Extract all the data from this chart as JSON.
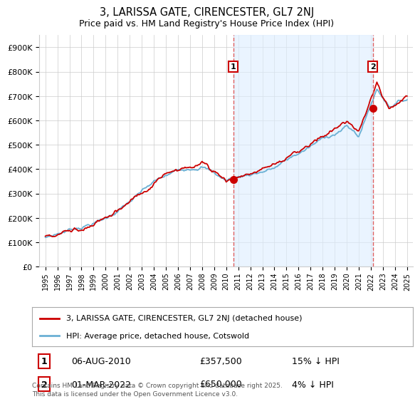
{
  "title": "3, LARISSA GATE, CIRENCESTER, GL7 2NJ",
  "subtitle": "Price paid vs. HM Land Registry's House Price Index (HPI)",
  "hpi_label": "HPI: Average price, detached house, Cotswold",
  "property_label": "3, LARISSA GATE, CIRENCESTER, GL7 2NJ (detached house)",
  "annotation1_date": "06-AUG-2010",
  "annotation1_price": "£357,500",
  "annotation1_hpi": "15% ↓ HPI",
  "annotation2_date": "01-MAR-2022",
  "annotation2_price": "£650,000",
  "annotation2_hpi": "4% ↓ HPI",
  "sale1_year": 2010.59,
  "sale1_value": 357500,
  "sale2_year": 2022.17,
  "sale2_value": 650000,
  "ylim_max": 950000,
  "ylim_min": 0,
  "xlim_min": 1994.5,
  "xlim_max": 2025.5,
  "hpi_color": "#6ab0d4",
  "property_color": "#cc0000",
  "vline_color": "#e06060",
  "shade_color": "#ddeeff",
  "grid_color": "#cccccc",
  "background_color": "#ffffff",
  "footer_text": "Contains HM Land Registry data © Crown copyright and database right 2025.\nThis data is licensed under the Open Government Licence v3.0.",
  "yticks": [
    0,
    100000,
    200000,
    300000,
    400000,
    500000,
    600000,
    700000,
    800000,
    900000
  ],
  "ytick_labels": [
    "£0",
    "£100K",
    "£200K",
    "£300K",
    "£400K",
    "£500K",
    "£600K",
    "£700K",
    "£800K",
    "£900K"
  ],
  "xticks": [
    1995,
    1996,
    1997,
    1998,
    1999,
    2000,
    2001,
    2002,
    2003,
    2004,
    2005,
    2006,
    2007,
    2008,
    2009,
    2010,
    2011,
    2012,
    2013,
    2014,
    2015,
    2016,
    2017,
    2018,
    2019,
    2020,
    2021,
    2022,
    2023,
    2024,
    2025
  ]
}
